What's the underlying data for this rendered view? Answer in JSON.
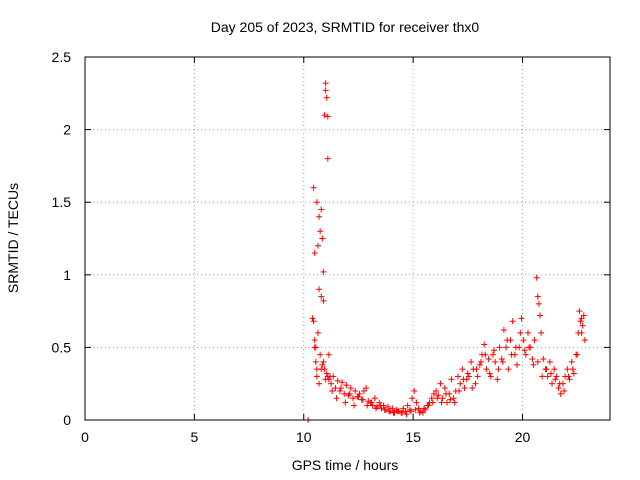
{
  "chart_data": {
    "type": "scatter",
    "title": "Day 205 of 2023, SRMTID for receiver thx0",
    "xlabel": "GPS time / hours",
    "ylabel": "SRMTID / TECUs",
    "xlim": [
      0,
      24
    ],
    "ylim": [
      0,
      2.5
    ],
    "x_ticks": [
      0,
      5,
      10,
      15,
      20
    ],
    "x_tick_labels": [
      "0",
      "5",
      "10",
      "15",
      "20"
    ],
    "y_ticks": [
      0,
      0.5,
      1,
      1.5,
      2,
      2.5
    ],
    "y_tick_labels": [
      "0",
      "0.5",
      "1",
      "1.5",
      "2",
      "2.5"
    ],
    "grid": true,
    "marker": "+",
    "color": "#ff0000",
    "series": [
      {
        "name": "SRMTID",
        "x": [
          10.2,
          10.4,
          10.45,
          10.5,
          10.5,
          10.55,
          10.6,
          10.6,
          10.65,
          10.7,
          10.7,
          10.75,
          10.8,
          10.8,
          10.85,
          10.9,
          10.9,
          10.95,
          11.0,
          11.0,
          11.05,
          11.1,
          11.1,
          11.15,
          11.2,
          10.45,
          10.55,
          10.65,
          10.75,
          10.85,
          10.95,
          11.05,
          11.15,
          11.25,
          11.35,
          11.45,
          11.55,
          11.65,
          11.75,
          11.85,
          11.95,
          12.05,
          12.15,
          12.25,
          12.35,
          12.45,
          12.55,
          12.65,
          12.75,
          12.85,
          12.95,
          13.05,
          13.15,
          13.25,
          13.35,
          13.45,
          13.55,
          13.65,
          13.75,
          13.85,
          13.95,
          14.05,
          14.15,
          14.25,
          14.35,
          14.45,
          14.55,
          14.65,
          14.75,
          14.85,
          14.95,
          15.05,
          15.15,
          15.25,
          15.35,
          15.45,
          15.55,
          15.65,
          15.75,
          15.85,
          15.95,
          16.05,
          16.15,
          16.25,
          16.35,
          16.45,
          16.55,
          16.65,
          16.75,
          16.85,
          16.95,
          17.05,
          17.15,
          17.25,
          17.35,
          17.45,
          17.55,
          17.65,
          17.75,
          17.85,
          17.95,
          18.05,
          18.15,
          18.25,
          18.35,
          18.45,
          18.55,
          18.65,
          18.75,
          18.85,
          18.95,
          19.05,
          19.15,
          19.25,
          19.35,
          19.45,
          19.55,
          19.65,
          19.75,
          19.85,
          19.95,
          20.05,
          20.15,
          20.25,
          20.35,
          20.45,
          20.55,
          20.65,
          20.7,
          20.75,
          20.8,
          20.85,
          20.95,
          21.05,
          21.15,
          21.25,
          21.35,
          21.45,
          21.55,
          21.65,
          21.75,
          21.85,
          21.95,
          22.05,
          22.15,
          22.25,
          22.35,
          22.45,
          22.55,
          22.6,
          22.65,
          22.7,
          22.75,
          22.8,
          22.85,
          10.5,
          10.6,
          10.7,
          10.8,
          10.9,
          11.0,
          11.1,
          11.3,
          11.5,
          11.7,
          11.9,
          12.1,
          12.3,
          12.5,
          12.7,
          12.9,
          13.1,
          13.3,
          13.5,
          13.7,
          13.9,
          14.1,
          14.3,
          14.5,
          14.7,
          14.9,
          15.1,
          15.3,
          15.5,
          15.7,
          15.9,
          16.1,
          16.3,
          16.5,
          16.7,
          16.9,
          17.1,
          17.3,
          17.5,
          17.7,
          17.9,
          18.1,
          18.3,
          18.5,
          18.7,
          18.9,
          19.1,
          19.3,
          19.5,
          19.7,
          19.9,
          20.1,
          20.3,
          20.5,
          20.7,
          20.9,
          21.1,
          21.3,
          21.5,
          21.7,
          21.9,
          22.1,
          22.3,
          22.5,
          22.7
        ],
        "y": [
          0.0,
          0.7,
          1.6,
          1.15,
          0.55,
          0.4,
          1.5,
          0.35,
          1.2,
          1.4,
          0.9,
          1.3,
          1.45,
          0.85,
          1.25,
          1.02,
          0.82,
          2.1,
          2.32,
          2.27,
          2.22,
          2.09,
          1.8,
          0.45,
          0.3,
          0.68,
          0.5,
          0.6,
          0.45,
          0.38,
          0.35,
          0.32,
          0.28,
          0.25,
          0.3,
          0.22,
          0.27,
          0.2,
          0.26,
          0.18,
          0.24,
          0.17,
          0.22,
          0.15,
          0.2,
          0.16,
          0.18,
          0.14,
          0.2,
          0.22,
          0.13,
          0.12,
          0.1,
          0.15,
          0.09,
          0.12,
          0.08,
          0.1,
          0.07,
          0.09,
          0.06,
          0.08,
          0.05,
          0.07,
          0.06,
          0.05,
          0.08,
          0.06,
          0.1,
          0.07,
          0.15,
          0.2,
          0.12,
          0.08,
          0.06,
          0.05,
          0.07,
          0.1,
          0.12,
          0.15,
          0.18,
          0.2,
          0.17,
          0.25,
          0.15,
          0.22,
          0.12,
          0.18,
          0.28,
          0.15,
          0.2,
          0.3,
          0.25,
          0.35,
          0.22,
          0.28,
          0.3,
          0.4,
          0.35,
          0.25,
          0.3,
          0.38,
          0.45,
          0.52,
          0.35,
          0.42,
          0.3,
          0.45,
          0.4,
          0.28,
          0.5,
          0.42,
          0.62,
          0.5,
          0.35,
          0.55,
          0.68,
          0.45,
          0.38,
          0.5,
          0.7,
          0.55,
          0.45,
          0.6,
          0.5,
          0.42,
          0.55,
          0.98,
          0.85,
          0.8,
          0.72,
          0.6,
          0.42,
          0.35,
          0.3,
          0.4,
          0.25,
          0.35,
          0.3,
          0.22,
          0.18,
          0.25,
          0.3,
          0.35,
          0.28,
          0.4,
          0.32,
          0.45,
          0.6,
          0.75,
          0.68,
          0.7,
          0.65,
          0.72,
          0.55,
          0.5,
          0.3,
          0.25,
          0.35,
          0.4,
          0.28,
          0.3,
          0.2,
          0.15,
          0.22,
          0.12,
          0.18,
          0.1,
          0.16,
          0.14,
          0.1,
          0.12,
          0.08,
          0.1,
          0.07,
          0.06,
          0.05,
          0.06,
          0.05,
          0.04,
          0.06,
          0.07,
          0.05,
          0.08,
          0.1,
          0.12,
          0.15,
          0.12,
          0.18,
          0.14,
          0.12,
          0.2,
          0.28,
          0.32,
          0.22,
          0.35,
          0.4,
          0.45,
          0.32,
          0.48,
          0.35,
          0.4,
          0.55,
          0.45,
          0.5,
          0.6,
          0.48,
          0.5,
          0.38,
          0.4,
          0.3,
          0.35,
          0.32,
          0.28,
          0.25,
          0.2,
          0.3,
          0.35,
          0.45,
          0.6
        ]
      }
    ]
  }
}
